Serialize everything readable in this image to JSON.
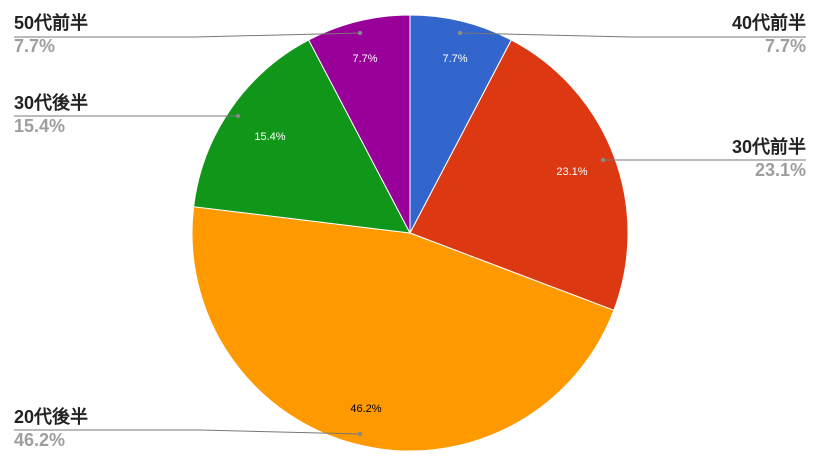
{
  "chart_data": {
    "type": "pie",
    "categories": [
      "40代前半",
      "30代前半",
      "20代後半",
      "30代後半",
      "50代前半"
    ],
    "values": [
      7.7,
      23.1,
      46.2,
      15.4,
      7.7
    ],
    "labels": [
      "7.7%",
      "23.1%",
      "46.2%",
      "15.4%",
      "7.7%"
    ],
    "colors": [
      "#3366cc",
      "#dc3912",
      "#ff9900",
      "#109618",
      "#990099"
    ],
    "inner_label_colors": [
      "#ffffff",
      "#ffffff",
      "#000000",
      "#ffffff",
      "#ffffff"
    ],
    "legend": "labeled leader lines",
    "start": "top, clockwise"
  }
}
